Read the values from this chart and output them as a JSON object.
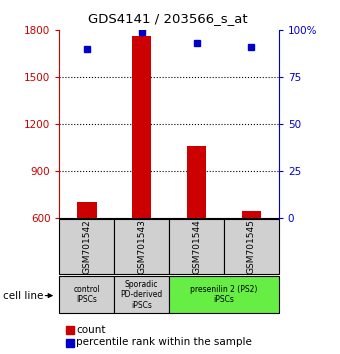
{
  "title": "GDS4141 / 203566_s_at",
  "samples": [
    "GSM701542",
    "GSM701543",
    "GSM701544",
    "GSM701545"
  ],
  "counts": [
    700,
    1760,
    1060,
    640
  ],
  "percentile_ranks": [
    90,
    99,
    93,
    91
  ],
  "ylim_left": [
    600,
    1800
  ],
  "ylim_right": [
    0,
    100
  ],
  "yticks_left": [
    600,
    900,
    1200,
    1500,
    1800
  ],
  "yticks_right": [
    0,
    25,
    50,
    75,
    100
  ],
  "bar_color": "#cc0000",
  "dot_color": "#0000cc",
  "label_bg_gray": "#d0d0d0",
  "label_bg_green": "#66ee44",
  "cell_line_label": "cell line",
  "legend_count": "count",
  "legend_pct": "percentile rank within the sample",
  "left_axis_color": "#cc0000",
  "right_axis_color": "#0000cc",
  "groups": [
    {
      "label": "control\nIPSCs",
      "start": 0,
      "end": 1,
      "color": "#d0d0d0"
    },
    {
      "label": "Sporadic\nPD-derived\niPSCs",
      "start": 1,
      "end": 2,
      "color": "#d0d0d0"
    },
    {
      "label": "presenilin 2 (PS2)\niPSCs",
      "start": 2,
      "end": 4,
      "color": "#66ee44"
    }
  ]
}
